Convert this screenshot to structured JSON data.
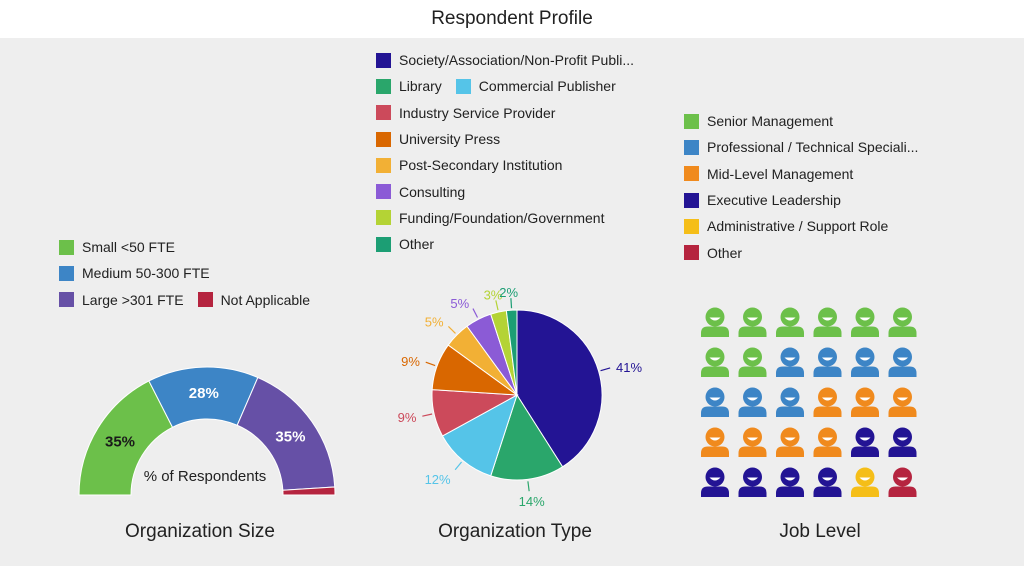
{
  "title": "Respondent Profile",
  "chart_data": [
    {
      "type": "pie",
      "title": "Organization Size",
      "center_label": "% of Respondents",
      "series": [
        {
          "name": "Small <50 FTE",
          "value": 35,
          "label": "35%",
          "color": "#6cc04a"
        },
        {
          "name": "Medium 50-300 FTE",
          "value": 28,
          "label": "28%",
          "color": "#3d85c6"
        },
        {
          "name": "Large >301 FTE",
          "value": 35,
          "label": "35%",
          "color": "#6650a6"
        },
        {
          "name": "Not Applicable",
          "value": 2,
          "label": "",
          "color": "#b5243f"
        }
      ]
    },
    {
      "type": "pie",
      "title": "Organization Type",
      "legend": [
        "Society/Association/Non-Profit Publi...",
        "Library",
        "Commercial Publisher",
        "Industry Service Provider",
        "University Press",
        "Post-Secondary Institution",
        "Consulting",
        "Funding/Foundation/Government",
        "Other"
      ],
      "slices": [
        {
          "name": "Society/Association/Non-Profit Publi...",
          "value": 41,
          "label": "41%",
          "color": "#231494"
        },
        {
          "name": "Library",
          "value": 14,
          "label": "14%",
          "color": "#2aa66b"
        },
        {
          "name": "Commercial Publisher",
          "value": 12,
          "label": "12%",
          "color": "#55c4e8"
        },
        {
          "name": "Industry Service Provider",
          "value": 9,
          "label": "9%",
          "color": "#cc4a5b"
        },
        {
          "name": "University Press",
          "value": 9,
          "label": "9%",
          "color": "#d96700"
        },
        {
          "name": "Post-Secondary Institution",
          "value": 5,
          "label": "5%",
          "color": "#f2b035"
        },
        {
          "name": "Consulting",
          "value": 5,
          "label": "5%",
          "color": "#8b5bd6"
        },
        {
          "name": "Funding/Foundation/Government",
          "value": 3,
          "label": "3%",
          "color": "#b4d335"
        },
        {
          "name": "Other",
          "value": 2,
          "label": "2%",
          "color": "#1c9e74"
        }
      ]
    },
    {
      "type": "pictograph",
      "title": "Job Level",
      "series": [
        {
          "name": "Senior Management",
          "count": 8,
          "color": "#6cc04a"
        },
        {
          "name": "Professional / Technical Speciali...",
          "count": 7,
          "color": "#3d85c6"
        },
        {
          "name": "Mid-Level Management",
          "count": 7,
          "color": "#f08a1d"
        },
        {
          "name": "Executive Leadership",
          "count": 6,
          "color": "#231494"
        },
        {
          "name": "Administrative / Support Role",
          "count": 1,
          "color": "#f5be18"
        },
        {
          "name": "Other",
          "count": 1,
          "color": "#b5243f"
        }
      ]
    }
  ]
}
